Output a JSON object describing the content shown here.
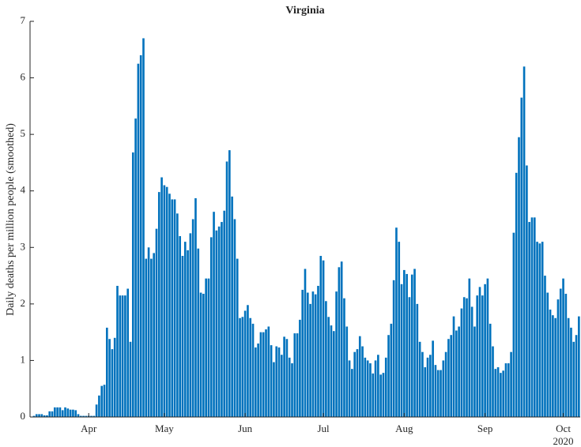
{
  "chart_data": {
    "type": "bar",
    "title": "Virginia",
    "y_label": "Daily deaths per million people (smoothed)",
    "x_sublabel": "2020",
    "color": "#0072BD",
    "grid": false,
    "ylim": [
      0,
      7
    ],
    "yticks": [
      0,
      1,
      2,
      3,
      4,
      5,
      6,
      7
    ],
    "categories": [
      null,
      null,
      null,
      null,
      null,
      null,
      null,
      null,
      null,
      null,
      null,
      null,
      null,
      null,
      null,
      null,
      null,
      null,
      null,
      null,
      null,
      null,
      "Apr",
      null,
      null,
      null,
      null,
      null,
      null,
      null,
      null,
      null,
      null,
      null,
      null,
      null,
      null,
      null,
      null,
      null,
      null,
      null,
      null,
      null,
      null,
      null,
      null,
      null,
      null,
      null,
      null,
      "May",
      null,
      null,
      null,
      null,
      null,
      null,
      null,
      null,
      null,
      null,
      null,
      null,
      null,
      null,
      null,
      null,
      null,
      null,
      null,
      null,
      null,
      null,
      null,
      null,
      null,
      null,
      null,
      null,
      null,
      null,
      "Jun",
      null,
      null,
      null,
      null,
      null,
      null,
      null,
      null,
      null,
      null,
      null,
      null,
      null,
      null,
      null,
      null,
      null,
      null,
      null,
      null,
      null,
      null,
      null,
      null,
      null,
      null,
      null,
      null,
      null,
      "Jul",
      null,
      null,
      null,
      null,
      null,
      null,
      null,
      null,
      null,
      null,
      null,
      null,
      null,
      null,
      null,
      null,
      null,
      null,
      null,
      null,
      null,
      null,
      null,
      null,
      null,
      null,
      null,
      null,
      null,
      null,
      "Aug",
      null,
      null,
      null,
      null,
      null,
      null,
      null,
      null,
      null,
      null,
      null,
      null,
      null,
      null,
      null,
      null,
      null,
      null,
      null,
      null,
      null,
      null,
      null,
      null,
      null,
      null,
      null,
      null,
      null,
      null,
      "Sep",
      null,
      null,
      null,
      null,
      null,
      null,
      null,
      null,
      null,
      null,
      null,
      null,
      null,
      null,
      null,
      null,
      null,
      null,
      null,
      null,
      null,
      null,
      null,
      null,
      null,
      null,
      null,
      null,
      null,
      "Oct",
      null,
      null,
      null,
      null,
      null,
      null
    ],
    "values": [
      0,
      0.02,
      0.05,
      0.05,
      0.05,
      0.03,
      0.03,
      0.1,
      0.1,
      0.17,
      0.17,
      0.17,
      0.12,
      0.17,
      0.15,
      0.13,
      0.13,
      0.12,
      0.05,
      0.02,
      0.02,
      0.02,
      0.02,
      0.02,
      0.02,
      0.22,
      0.38,
      0.55,
      0.57,
      1.58,
      1.38,
      1.2,
      1.4,
      2.32,
      2.15,
      2.15,
      2.15,
      2.27,
      1.33,
      4.68,
      5.28,
      6.25,
      6.4,
      6.7,
      2.8,
      3.0,
      2.8,
      2.9,
      3.33,
      3.98,
      4.24,
      4.1,
      4.07,
      3.95,
      3.85,
      3.85,
      3.6,
      3.2,
      2.85,
      3.1,
      2.95,
      3.25,
      3.5,
      3.87,
      2.98,
      2.2,
      2.18,
      2.45,
      2.45,
      3.18,
      3.63,
      3.3,
      3.37,
      3.45,
      3.65,
      4.52,
      4.72,
      3.9,
      3.5,
      2.8,
      1.75,
      1.77,
      1.88,
      1.98,
      1.75,
      1.65,
      1.23,
      1.3,
      1.5,
      1.5,
      1.55,
      1.6,
      1.27,
      0.97,
      1.25,
      1.23,
      1.1,
      1.42,
      1.38,
      1.05,
      0.95,
      1.48,
      1.48,
      1.72,
      2.25,
      2.62,
      2.2,
      2.0,
      2.22,
      2.17,
      2.32,
      2.85,
      2.77,
      2.05,
      1.77,
      1.62,
      1.52,
      2.22,
      2.65,
      2.75,
      2.1,
      1.6,
      1.0,
      0.85,
      1.15,
      1.2,
      1.43,
      1.25,
      1.05,
      1.0,
      0.95,
      0.77,
      1.0,
      1.1,
      0.75,
      0.78,
      1.05,
      1.45,
      1.65,
      2.42,
      3.35,
      3.1,
      2.35,
      2.6,
      2.53,
      2.12,
      2.52,
      2.62,
      2.0,
      1.33,
      1.15,
      0.88,
      1.05,
      1.1,
      1.35,
      0.92,
      0.83,
      0.83,
      1.0,
      1.15,
      1.38,
      1.45,
      1.78,
      1.53,
      1.6,
      1.92,
      2.12,
      2.1,
      2.45,
      1.95,
      1.6,
      2.15,
      2.3,
      2.15,
      2.35,
      2.45,
      1.65,
      1.25,
      0.85,
      0.88,
      0.78,
      0.82,
      0.95,
      0.95,
      1.15,
      3.26,
      4.32,
      4.95,
      5.65,
      6.2,
      4.45,
      3.45,
      3.53,
      3.53,
      3.1,
      3.07,
      3.1,
      2.5,
      2.2,
      1.9,
      1.8,
      1.75,
      2.08,
      2.27,
      2.45,
      2.18,
      1.75,
      1.58,
      1.33,
      1.45,
      1.78
    ]
  }
}
